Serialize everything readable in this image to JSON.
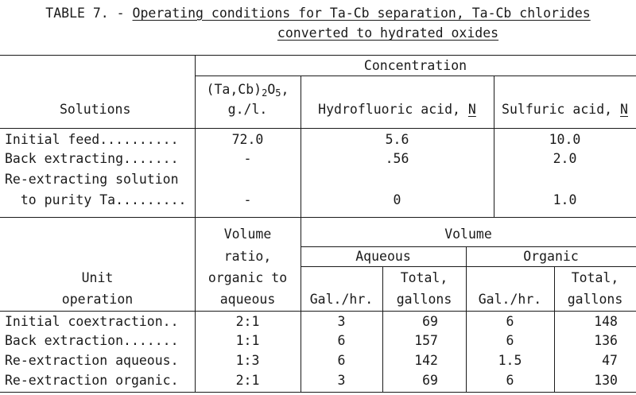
{
  "title": {
    "prefix": "TABLE 7. - ",
    "line1": "Operating conditions for Ta-Cb separation, Ta-Cb chlorides",
    "line2": "converted to hydrated oxides"
  },
  "conditions": {
    "headers": {
      "concentration": "Concentration",
      "solutions": "Solutions",
      "oxide_prefix": "(Ta,Cb)",
      "oxide_sub": "2",
      "oxide_suffix": "O",
      "oxide_sub2": "5",
      "oxide_comma": ",",
      "oxide_units": "g./l.",
      "hf": "Hydrofluoric acid, ",
      "hf_unit": "N",
      "h2so4": "Sulfuric acid, ",
      "h2so4_unit": "N"
    },
    "rows": [
      {
        "solution": "Initial feed..........",
        "oxide": "72.0",
        "hf": "5.6",
        "h2so4": "10.0"
      },
      {
        "solution": "Back extracting.......",
        "oxide": "-",
        "hf": ".56",
        "h2so4": "2.0"
      },
      {
        "solution": "Re-extracting solution",
        "solution2": "  to purity Ta.........",
        "oxide": "-",
        "hf": "0",
        "h2so4": "1.0"
      }
    ]
  },
  "operations": {
    "headers": {
      "unit_line1": "Unit",
      "unit_line2": "operation",
      "ratio_line1": "Volume",
      "ratio_line2": "ratio,",
      "ratio_line3": "organic to",
      "ratio_line4": "aqueous",
      "volume": "Volume",
      "aqueous": "Aqueous",
      "organic": "Organic",
      "gal_hr": "Gal./hr.",
      "total_line1": "Total,",
      "total_line2": "gallons"
    },
    "rows": [
      {
        "operation": "Initial coextraction..",
        "ratio": "2:1",
        "aq_gal_hr": "3",
        "aq_total": "69",
        "org_gal_hr": "6",
        "org_total": "148"
      },
      {
        "operation": "Back extraction.......",
        "ratio": "1:1",
        "aq_gal_hr": "6",
        "aq_total": "157",
        "org_gal_hr": "6",
        "org_total": "136"
      },
      {
        "operation": "Re-extraction aqueous.",
        "ratio": "1:3",
        "aq_gal_hr": "6",
        "aq_total": "142",
        "org_gal_hr": "1.5",
        "org_total": "47"
      },
      {
        "operation": "Re-extraction organic.",
        "ratio": "2:1",
        "aq_gal_hr": "3",
        "aq_total": "69",
        "org_gal_hr": "6",
        "org_total": "130"
      }
    ]
  }
}
